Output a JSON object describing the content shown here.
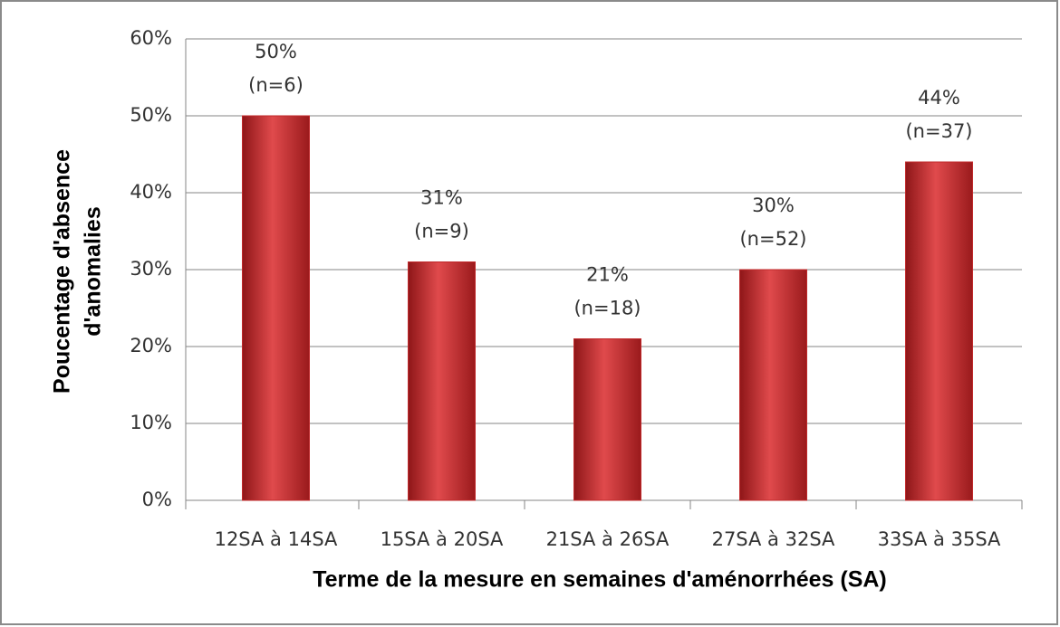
{
  "chart_data": {
    "type": "bar",
    "y_axis_label": [
      "Poucentage d'absence",
      "d'anomalies"
    ],
    "x_axis_label": "Terme de la mesure en semaines d'aménorrhées (SA)",
    "categories": [
      "12SA à 14SA",
      "15SA à 20SA",
      "21SA à 26SA",
      "27SA à 32SA",
      "33SA à 35SA"
    ],
    "values": [
      50,
      31,
      21,
      30,
      44
    ],
    "value_labels": [
      "50%",
      "31%",
      "21%",
      "30%",
      "44%"
    ],
    "count_labels": [
      "(n=6)",
      "(n=9)",
      "(n=18)",
      "(n=52)",
      "(n=37)"
    ],
    "color": "#c0282a",
    "ylim": [
      0,
      60
    ],
    "yticks": [
      {
        "value": 0,
        "label": "0%"
      },
      {
        "value": 10,
        "label": "10%"
      },
      {
        "value": 20,
        "label": "20%"
      },
      {
        "value": 30,
        "label": "30%"
      },
      {
        "value": 40,
        "label": "40%"
      },
      {
        "value": 50,
        "label": "50%"
      },
      {
        "value": 60,
        "label": "60%"
      }
    ],
    "grid": true
  }
}
